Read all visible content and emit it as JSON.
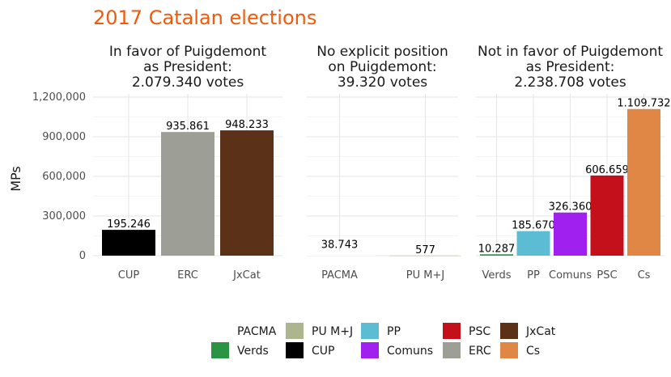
{
  "chart_data": {
    "type": "bar",
    "title": "2017 Catalan elections",
    "ylabel": "MPs",
    "xlabel": "",
    "ylim": [
      0,
      1200000
    ],
    "y_ticks": [
      0,
      300000,
      600000,
      900000,
      1200000
    ],
    "y_tick_labels": [
      "0",
      "300,000",
      "600,000",
      "900,000",
      "1,200,000"
    ],
    "grid": true,
    "legend_position": "bottom",
    "facets": [
      {
        "title_lines": [
          "In favor of Puigdemont",
          "as President:",
          "2.079.340 votes"
        ],
        "bars": [
          {
            "category": "CUP",
            "value": 195246,
            "label": "195.246"
          },
          {
            "category": "ERC",
            "value": 935861,
            "label": "935.861"
          },
          {
            "category": "JxCat",
            "value": 948233,
            "label": "948.233"
          }
        ]
      },
      {
        "title_lines": [
          "No explicit position",
          "on Puigdemont:",
          "39.320 votes"
        ],
        "bars": [
          {
            "category": "PACMA",
            "value": 38743,
            "label": "38.743"
          },
          {
            "category": "PU M+J",
            "value": 577,
            "label": "577"
          }
        ]
      },
      {
        "title_lines": [
          "Not in favor of Puigdemont",
          "as President:",
          "2.238.708 votes"
        ],
        "bars": [
          {
            "category": "Verds",
            "value": 10287,
            "label": "10.287"
          },
          {
            "category": "PP",
            "value": 185670,
            "label": "185.670"
          },
          {
            "category": "Comuns",
            "value": 326360,
            "label": "326.360"
          },
          {
            "category": "PSC",
            "value": 606659,
            "label": "606.659"
          },
          {
            "category": "Cs",
            "value": 1109732,
            "label": "1.109.732"
          }
        ]
      }
    ],
    "legend": [
      {
        "name": "PACMA",
        "color": "#ffffff"
      },
      {
        "name": "PU M+J",
        "color": "#abb68f"
      },
      {
        "name": "PP",
        "color": "#5bbcd4"
      },
      {
        "name": "PSC",
        "color": "#c4101a"
      },
      {
        "name": "JxCat",
        "color": "#5b3117"
      },
      {
        "name": "Verds",
        "color": "#2a9443"
      },
      {
        "name": "CUP",
        "color": "#000000"
      },
      {
        "name": "Comuns",
        "color": "#a020f0"
      },
      {
        "name": "ERC",
        "color": "#9d9e96"
      },
      {
        "name": "Cs",
        "color": "#e08746"
      }
    ],
    "title_color": "#f05a0a"
  }
}
